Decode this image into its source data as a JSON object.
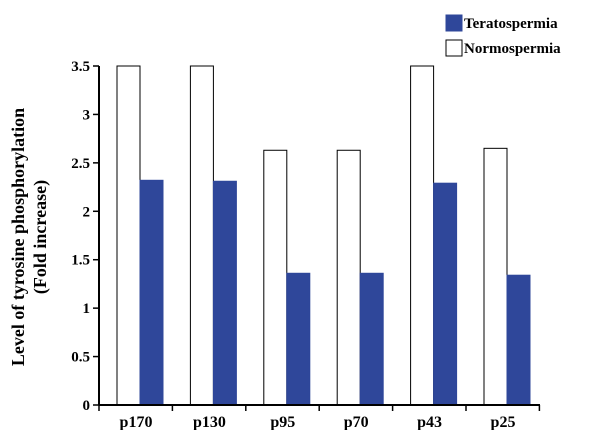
{
  "chart_data": {
    "type": "bar",
    "categories": [
      "p170",
      "p130",
      "p95",
      "p70",
      "p43",
      "p25"
    ],
    "series": [
      {
        "name": "Normospermia",
        "values": [
          3.5,
          3.5,
          2.63,
          2.63,
          3.5,
          2.65
        ],
        "color": "#ffffff"
      },
      {
        "name": "Teratospermia",
        "values": [
          2.32,
          2.31,
          1.36,
          1.36,
          2.29,
          1.34
        ],
        "color": "#2f479a"
      }
    ],
    "ylabel_line1": "Level of tyrosine phosphorylation",
    "ylabel_line2": "(Fold increase)",
    "ylim": [
      0,
      3.5
    ],
    "yticks": [
      "0",
      "0.5",
      "1",
      "1.5",
      "2",
      "2.5",
      "3",
      "3.5"
    ],
    "legend": {
      "position": "top-right",
      "entries": [
        "Teratospermia",
        "Normospermia"
      ]
    },
    "grid": false
  }
}
